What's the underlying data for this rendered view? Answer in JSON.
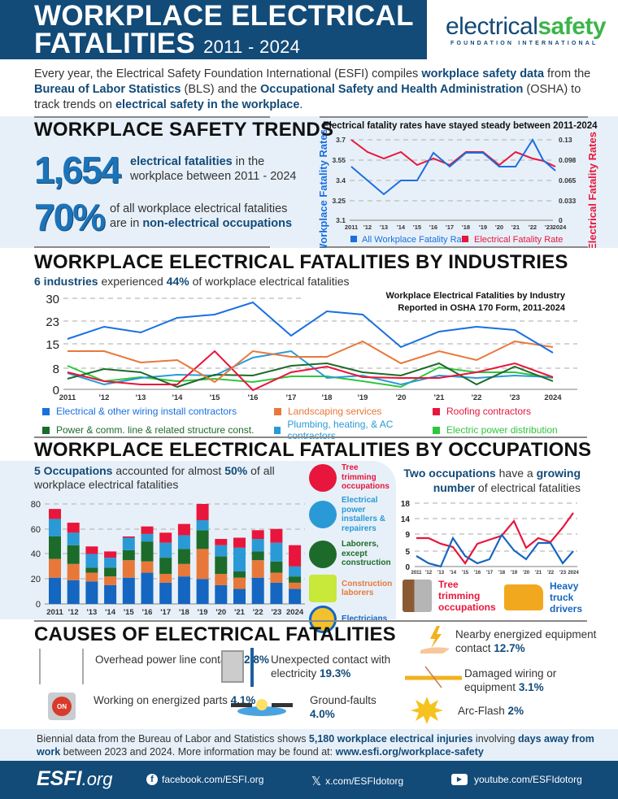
{
  "header": {
    "title_line1": "WORKPLACE ELECTRICAL",
    "title_line2": "FATALITIES",
    "years": "2011 - 2024",
    "logo_main_light": "electrical",
    "logo_main_bold": "safety",
    "logo_sub": "FOUNDATION INTERNATIONAL"
  },
  "intro": {
    "p1": "Every year, the Electrical Safety Foundation International (ESFI) compiles ",
    "h1": "workplace safety data",
    "p2": " from the ",
    "h2": "Bureau of Labor Statistics",
    "p3": " (BLS) and the ",
    "h3": "Occupational Safety and Health Administration",
    "p4": " (OSHA) to track trends on ",
    "h4": "electrical safety in the workplace",
    "p5": "."
  },
  "trends": {
    "title": "WORKPLACE SAFETY TRENDS",
    "stat1_number": "1,654",
    "stat1_bold": "electrical fatalities",
    "stat1_rest": " in the",
    "stat1_line2": "workplace between 2011 - 2024",
    "stat2_number": "70%",
    "stat2_line1": "of all workplace electrical fatalities",
    "stat2_pre": "are in ",
    "stat2_bold": "non-electrical occupations"
  },
  "industries": {
    "title": "WORKPLACE ELECTRICAL FATALITIES BY INDUSTRIES",
    "sub_bold1": "6 industries",
    "sub_mid": " experienced ",
    "sub_bold2": "44%",
    "sub_end": " of workplace electrical fatalities"
  },
  "occupations": {
    "title": "WORKPLACE ELECTRICAL FATALITIES BY OCCUPATIONS",
    "sub_bold1": "5 Occupations",
    "sub_mid": " accounted for almost ",
    "sub_bold2": "50%",
    "sub_end": " of all",
    "sub_line2": "workplace electrical fatalities",
    "legend": [
      {
        "label": "Tree trimming occupations",
        "color": "#e8163c",
        "icon": "saw-icon"
      },
      {
        "label": "Electrical power installers & repairers",
        "color": "#2a9ad6",
        "icon": "power-pole-icon"
      },
      {
        "label": "Laborers, except construction",
        "color": "#1d6b2a",
        "icon": "shovel-icon"
      },
      {
        "label": "Construction laborers",
        "color": "#e8783a",
        "icon": "safety-vest-icon"
      },
      {
        "label": "Electricians",
        "color": "#1566c0",
        "icon": "hard-hat-icon"
      }
    ],
    "growing_bold1": "Two occupations",
    "growing_mid": " have a ",
    "growing_bold2": "growing",
    "growing_bold3": "number",
    "growing_end": " of electrical fatalities",
    "growing_legend": [
      {
        "label": "Tree trimming occupations",
        "color": "#e8163c",
        "icon": "saw-icon"
      },
      {
        "label": "Heavy truck drivers",
        "color": "#1566c0",
        "icon": "dump-truck-icon"
      }
    ]
  },
  "causes": {
    "title": "CAUSES OF ELECTRICAL FATALITIES",
    "items": [
      {
        "text": "Overhead power line contact",
        "pct": "42.8%",
        "icon": "power-line-icon"
      },
      {
        "text": "Unexpected contact with electricity",
        "pct": "19.3%",
        "icon": "electrical-panel-icon"
      },
      {
        "text": "Nearby energized equipment contact",
        "pct": "12.7%",
        "icon": "hand-lightning-icon"
      },
      {
        "text": "Working on energized parts",
        "pct": "4.1%",
        "icon": "on-button-icon"
      },
      {
        "text": "Ground-faults",
        "pct": "4.0%",
        "icon": "ground-fault-icon"
      },
      {
        "text": "Damaged wiring or equipment",
        "pct": "3.1%",
        "icon": "damaged-wire-icon"
      },
      {
        "text": "Arc-Flash",
        "pct": "2%",
        "icon": "arc-flash-icon"
      }
    ]
  },
  "bottom_note": {
    "p1": "Biennial data from the Bureau of Labor and Statistics shows ",
    "h1": "5,180 workplace electrical injuries",
    "p2": " involving ",
    "h2": "days away from work",
    "p3": " between 2023 and 2024. More information may be found at: ",
    "h3": "www.esfi.org/workplace-safety"
  },
  "footer": {
    "brand": "ESFI",
    "brand_suffix": ".org",
    "facebook": "facebook.com/ESFI.org",
    "x": "x.com/ESFIdotorg",
    "youtube": "youtube.com/ESFIdotorg"
  },
  "chart_data": [
    {
      "type": "line",
      "title": "Electrical fatality rates have stayed steady between 2011-2024",
      "x": [
        "2011",
        "'12",
        "'13",
        "'14",
        "'15",
        "'16",
        "'17",
        "'18",
        "'19",
        "'20",
        "'21",
        "'22",
        "'23",
        "2024"
      ],
      "ylabel": "Workplace Fatality Rates",
      "y2label": "Electrical Fatality Rates",
      "ylim": [
        3.1,
        3.7
      ],
      "yticks": [
        3.1,
        3.25,
        3.4,
        3.55,
        3.7
      ],
      "y2lim": [
        0,
        0.13
      ],
      "y2ticks": [
        0,
        0.033,
        0.065,
        0.098,
        0.13
      ],
      "series": [
        {
          "name": "All Workplace Fatality Rate",
          "axis": "left",
          "color": "#1a6fe0",
          "values": [
            3.5,
            3.4,
            3.3,
            3.4,
            3.4,
            3.6,
            3.5,
            3.6,
            3.6,
            3.5,
            3.5,
            3.7,
            3.55,
            3.47
          ]
        },
        {
          "name": "Electrical Fatality Rate",
          "axis": "right",
          "color": "#e8163c",
          "values": [
            0.13,
            0.11,
            0.1,
            0.11,
            0.09,
            0.1,
            0.092,
            0.11,
            0.11,
            0.09,
            0.11,
            0.1,
            0.097,
            0.088
          ]
        }
      ],
      "grid": true,
      "legend_position": "bottom"
    },
    {
      "type": "line",
      "title": "Workplace Electrical Fatalities by Industry Reported in OSHA 170 Form, 2011-2024",
      "x": [
        "2011",
        "'12",
        "'13",
        "'14",
        "'15",
        "'16",
        "'17",
        "'18",
        "'19",
        "'20",
        "'21",
        "'22",
        "'23",
        "2024"
      ],
      "ylim": [
        0,
        30
      ],
      "yticks": [
        0,
        8,
        15,
        23,
        30
      ],
      "series": [
        {
          "name": "Electrical & other wiring install contractors",
          "color": "#1a6fe0",
          "values": [
            17,
            21,
            19,
            24,
            25,
            29,
            18,
            26,
            25,
            14,
            19,
            21,
            20,
            12
          ]
        },
        {
          "name": "Landscaping services",
          "color": "#e8783a",
          "values": [
            13,
            13,
            9,
            10,
            3,
            13,
            11,
            11,
            16,
            9,
            13,
            10,
            16,
            14
          ]
        },
        {
          "name": "Roofing contractors",
          "color": "#e8163c",
          "values": [
            6,
            3,
            2,
            2,
            13,
            0,
            6,
            8,
            4,
            4,
            4,
            6,
            9,
            4
          ]
        },
        {
          "name": "Power & comm. line & related structure const.",
          "color": "#1d6b2a",
          "values": [
            4,
            7,
            6,
            1,
            5,
            5,
            8,
            9,
            6,
            5,
            9,
            2,
            8,
            3
          ]
        },
        {
          "name": "Plumbing, heating, & AC contractors",
          "color": "#2a9ad6",
          "values": [
            6,
            2,
            4,
            5,
            5,
            11,
            13,
            4,
            5,
            2,
            5,
            4,
            5,
            4
          ]
        },
        {
          "name": "Electric power distribution",
          "color": "#2ec63c",
          "values": [
            8,
            3,
            5,
            3,
            4,
            3,
            5,
            5,
            3,
            1,
            8,
            6,
            6,
            4
          ]
        }
      ],
      "grid": true,
      "legend_position": "bottom"
    },
    {
      "type": "bar",
      "stacked": true,
      "title": "5 Occupations accounted for almost 50% of all workplace electrical fatalities",
      "categories": [
        "2011",
        "'12",
        "'13",
        "'14",
        "'15",
        "'16",
        "'17",
        "'18",
        "'19",
        "'20",
        "'21",
        "'22",
        "'23",
        "2024"
      ],
      "ylim": [
        0,
        80
      ],
      "yticks": [
        0,
        20,
        40,
        60,
        80
      ],
      "series": [
        {
          "name": "Electricians",
          "color": "#1566c0",
          "values": [
            21,
            19,
            18,
            15,
            21,
            25,
            17,
            22,
            20,
            15,
            12,
            21,
            17,
            12
          ]
        },
        {
          "name": "Construction laborers",
          "color": "#e8783a",
          "values": [
            15,
            13,
            7,
            7,
            14,
            9,
            7,
            10,
            24,
            9,
            9,
            14,
            8,
            5
          ]
        },
        {
          "name": "Laborers, except construction",
          "color": "#1d6b2a",
          "values": [
            18,
            15,
            4,
            7,
            8,
            16,
            13,
            12,
            15,
            14,
            5,
            7,
            9,
            5
          ]
        },
        {
          "name": "Electrical power installers & repairers",
          "color": "#2a9ad6",
          "values": [
            14,
            10,
            11,
            8,
            10,
            6,
            12,
            11,
            8,
            9,
            19,
            10,
            15,
            8
          ]
        },
        {
          "name": "Tree trimming occupations",
          "color": "#e8163c",
          "values": [
            8,
            8,
            6,
            5,
            1,
            6,
            8,
            9,
            13,
            5,
            8,
            7,
            11,
            17
          ]
        }
      ],
      "grid": true
    },
    {
      "type": "line",
      "title": "Two occupations have a growing number of electrical fatalities",
      "x": [
        "2011",
        "'12",
        "'13",
        "'14",
        "'15",
        "'16",
        "'17",
        "'18",
        "'19",
        "'20",
        "'21",
        "'22",
        "'23",
        "2024"
      ],
      "ylim": [
        0,
        18
      ],
      "yticks": [
        0,
        5,
        9,
        14,
        18
      ],
      "series": [
        {
          "name": "Tree trimming occupations",
          "color": "#e8163c",
          "values": [
            8,
            8,
            6.5,
            5.5,
            1,
            7.5,
            8.5,
            9,
            13,
            5.5,
            8,
            7,
            11,
            17
          ]
        },
        {
          "name": "Heavy truck drivers",
          "color": "#1566c0",
          "values": [
            3,
            1,
            0,
            8,
            3,
            1,
            2,
            9,
            5,
            2,
            6.5,
            6.5,
            1,
            4.5
          ]
        }
      ],
      "grid": true
    }
  ]
}
